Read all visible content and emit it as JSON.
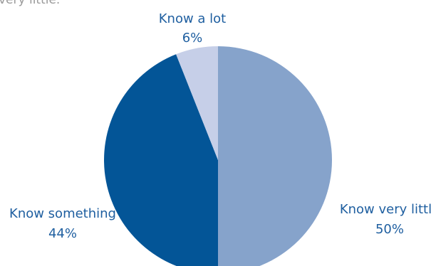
{
  "caption_fragment": "very little.",
  "chart_data": {
    "type": "pie",
    "title": "",
    "start_angle_deg": 0,
    "direction": "clockwise",
    "slices": [
      {
        "label": "Know very little",
        "value": 50,
        "value_label": "50%",
        "color": "#86a3cb"
      },
      {
        "label": "Know something",
        "value": 44,
        "value_label": "44%",
        "color": "#035597"
      },
      {
        "label": "Know a lot",
        "value": 6,
        "value_label": "6%",
        "color": "#c6cfe8"
      }
    ]
  }
}
